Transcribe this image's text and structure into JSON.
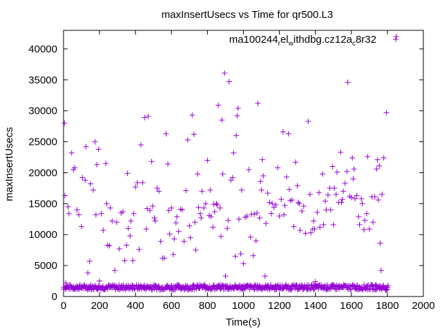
{
  "chart_data": {
    "type": "scatter",
    "title": "maxInsertUsecs vs Time for qr500.L3",
    "xlabel": "Time(s)",
    "ylabel": "maxInsertUsecs",
    "xlim": [
      0,
      2000
    ],
    "ylim": [
      0,
      43000
    ],
    "x_ticks": [
      0,
      200,
      400,
      600,
      800,
      1000,
      1200,
      1400,
      1600,
      1800,
      2000
    ],
    "y_ticks": [
      0,
      5000,
      10000,
      15000,
      20000,
      25000,
      30000,
      35000,
      40000
    ],
    "marker": "+",
    "grid": false,
    "legend_position": "top-right",
    "series": [
      {
        "name_parts": [
          "ma100244",
          "r",
          "el",
          "w",
          "ithdbg.cz12a",
          "c",
          "8r32"
        ],
        "color": "#9400d3",
        "baseline_band": {
          "x_from": 0,
          "x_to": 1800,
          "x_step": 6,
          "y_min": 1100,
          "y_max": 1900
        },
        "points": [
          [
            5,
            28000
          ],
          [
            8,
            16300
          ],
          [
            12,
            2200
          ],
          [
            25,
            14500
          ],
          [
            30,
            13400
          ],
          [
            45,
            23200
          ],
          [
            55,
            20500
          ],
          [
            62,
            20800
          ],
          [
            75,
            14000
          ],
          [
            85,
            13200
          ],
          [
            100,
            11300
          ],
          [
            105,
            19200
          ],
          [
            120,
            18800
          ],
          [
            125,
            24200
          ],
          [
            135,
            3800
          ],
          [
            145,
            5700
          ],
          [
            150,
            18200
          ],
          [
            165,
            17200
          ],
          [
            175,
            25000
          ],
          [
            180,
            13200
          ],
          [
            185,
            21300
          ],
          [
            195,
            23800
          ],
          [
            200,
            2500
          ],
          [
            210,
            13400
          ],
          [
            220,
            10700
          ],
          [
            235,
            21500
          ],
          [
            240,
            15000
          ],
          [
            245,
            8300
          ],
          [
            255,
            8200
          ],
          [
            260,
            14300
          ],
          [
            270,
            12200
          ],
          [
            285,
            4200
          ],
          [
            295,
            12000
          ],
          [
            310,
            7700
          ],
          [
            320,
            13500
          ],
          [
            330,
            13700
          ],
          [
            340,
            5800
          ],
          [
            350,
            8300
          ],
          [
            355,
            19900
          ],
          [
            360,
            11000
          ],
          [
            370,
            9800
          ],
          [
            375,
            12200
          ],
          [
            385,
            5800
          ],
          [
            390,
            13400
          ],
          [
            400,
            17700
          ],
          [
            410,
            18400
          ],
          [
            420,
            7600
          ],
          [
            430,
            24500
          ],
          [
            440,
            18400
          ],
          [
            450,
            28900
          ],
          [
            460,
            10900
          ],
          [
            465,
            14200
          ],
          [
            470,
            29100
          ],
          [
            480,
            13900
          ],
          [
            490,
            21800
          ],
          [
            495,
            14600
          ],
          [
            505,
            12700
          ],
          [
            510,
            12200
          ],
          [
            520,
            17500
          ],
          [
            530,
            17000
          ],
          [
            540,
            8900
          ],
          [
            550,
            6200
          ],
          [
            560,
            6200
          ],
          [
            570,
            26300
          ],
          [
            580,
            21400
          ],
          [
            585,
            13900
          ],
          [
            590,
            10100
          ],
          [
            600,
            14300
          ],
          [
            610,
            6800
          ],
          [
            615,
            9300
          ],
          [
            625,
            11900
          ],
          [
            630,
            12900
          ],
          [
            640,
            10500
          ],
          [
            650,
            14100
          ],
          [
            660,
            14000
          ],
          [
            670,
            8900
          ],
          [
            680,
            17100
          ],
          [
            690,
            25300
          ],
          [
            700,
            11400
          ],
          [
            705,
            9500
          ],
          [
            715,
            29300
          ],
          [
            725,
            26200
          ],
          [
            730,
            12000
          ],
          [
            735,
            7500
          ],
          [
            745,
            19800
          ],
          [
            750,
            14400
          ],
          [
            760,
            13400
          ],
          [
            765,
            12700
          ],
          [
            770,
            17000
          ],
          [
            780,
            14300
          ],
          [
            790,
            15000
          ],
          [
            800,
            22000
          ],
          [
            810,
            13100
          ],
          [
            815,
            17200
          ],
          [
            820,
            12900
          ],
          [
            830,
            11200
          ],
          [
            835,
            14900
          ],
          [
            840,
            13700
          ],
          [
            850,
            15000
          ],
          [
            855,
            14800
          ],
          [
            860,
            30900
          ],
          [
            870,
            14300
          ],
          [
            875,
            9700
          ],
          [
            880,
            28500
          ],
          [
            885,
            19800
          ],
          [
            895,
            36100
          ],
          [
            900,
            3300
          ],
          [
            910,
            11000
          ],
          [
            915,
            12300
          ],
          [
            920,
            34700
          ],
          [
            930,
            18800
          ],
          [
            940,
            19200
          ],
          [
            945,
            23200
          ],
          [
            955,
            6500
          ],
          [
            960,
            26000
          ],
          [
            965,
            29200
          ],
          [
            970,
            30400
          ],
          [
            975,
            12500
          ],
          [
            985,
            6900
          ],
          [
            990,
            17200
          ],
          [
            1000,
            5300
          ],
          [
            1010,
            12800
          ],
          [
            1020,
            13000
          ],
          [
            1030,
            20500
          ],
          [
            1040,
            9600
          ],
          [
            1045,
            13300
          ],
          [
            1055,
            6600
          ],
          [
            1060,
            13300
          ],
          [
            1070,
            9000
          ],
          [
            1075,
            13500
          ],
          [
            1080,
            31200
          ],
          [
            1090,
            12700
          ],
          [
            1095,
            18600
          ],
          [
            1100,
            17200
          ],
          [
            1105,
            22100
          ],
          [
            1110,
            19500
          ],
          [
            1120,
            3300
          ],
          [
            1125,
            11800
          ],
          [
            1135,
            16700
          ],
          [
            1145,
            15200
          ],
          [
            1155,
            13400
          ],
          [
            1160,
            15000
          ],
          [
            1170,
            14400
          ],
          [
            1180,
            14800
          ],
          [
            1190,
            20800
          ],
          [
            1200,
            13000
          ],
          [
            1210,
            15700
          ],
          [
            1220,
            26600
          ],
          [
            1225,
            13200
          ],
          [
            1230,
            14700
          ],
          [
            1240,
            19300
          ],
          [
            1250,
            26300
          ],
          [
            1255,
            17300
          ],
          [
            1260,
            15500
          ],
          [
            1270,
            15600
          ],
          [
            1280,
            11300
          ],
          [
            1290,
            21700
          ],
          [
            1300,
            17900
          ],
          [
            1305,
            15200
          ],
          [
            1310,
            15000
          ],
          [
            1315,
            10700
          ],
          [
            1325,
            13800
          ],
          [
            1335,
            14600
          ],
          [
            1345,
            10200
          ],
          [
            1360,
            28300
          ],
          [
            1370,
            16500
          ],
          [
            1375,
            10300
          ],
          [
            1385,
            10900
          ],
          [
            1390,
            12200
          ],
          [
            1395,
            10900
          ],
          [
            1400,
            2400
          ],
          [
            1410,
            13600
          ],
          [
            1420,
            16800
          ],
          [
            1425,
            11200
          ],
          [
            1440,
            19800
          ],
          [
            1445,
            11600
          ],
          [
            1455,
            15400
          ],
          [
            1460,
            14000
          ],
          [
            1470,
            16400
          ],
          [
            1480,
            17500
          ],
          [
            1485,
            14000
          ],
          [
            1495,
            21000
          ],
          [
            1500,
            11600
          ],
          [
            1505,
            17500
          ],
          [
            1515,
            16500
          ],
          [
            1520,
            20100
          ],
          [
            1530,
            15200
          ],
          [
            1540,
            23300
          ],
          [
            1545,
            15200
          ],
          [
            1550,
            15700
          ],
          [
            1555,
            17000
          ],
          [
            1565,
            18300
          ],
          [
            1575,
            20200
          ],
          [
            1580,
            34600
          ],
          [
            1590,
            16200
          ],
          [
            1600,
            16000
          ],
          [
            1605,
            22400
          ],
          [
            1610,
            19000
          ],
          [
            1615,
            20600
          ],
          [
            1620,
            15800
          ],
          [
            1630,
            16300
          ],
          [
            1640,
            12900
          ],
          [
            1645,
            11600
          ],
          [
            1655,
            15800
          ],
          [
            1660,
            15000
          ],
          [
            1670,
            10800
          ],
          [
            1675,
            12300
          ],
          [
            1685,
            13400
          ],
          [
            1690,
            22600
          ],
          [
            1700,
            10900
          ],
          [
            1715,
            16100
          ],
          [
            1720,
            12000
          ],
          [
            1730,
            16100
          ],
          [
            1740,
            20600
          ],
          [
            1745,
            22100
          ],
          [
            1750,
            15600
          ],
          [
            1755,
            21100
          ],
          [
            1760,
            8600
          ],
          [
            1765,
            4200
          ],
          [
            1770,
            16500
          ],
          [
            1780,
            22400
          ],
          [
            1790,
            1000
          ],
          [
            1795,
            29700
          ],
          [
            1800,
            1500
          ],
          [
            1850,
            42000
          ]
        ]
      }
    ]
  }
}
